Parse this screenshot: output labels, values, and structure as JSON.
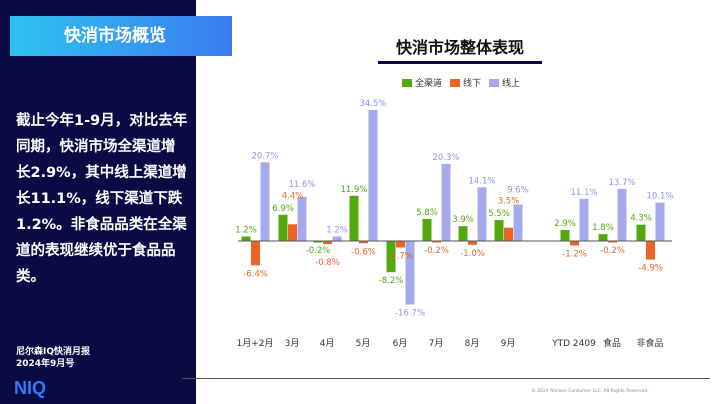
{
  "left_panel": {
    "title": "快消市场概览",
    "summary": "截止今年1-9月，对比去年同期，快消市场全渠道增长2.9%，其中线上渠道增长11.1%，线下渠道下跌1.2%。非食品品类在全渠道的表现继续优于食品品类。",
    "report_line1": "尼尔森IQ快消月报",
    "report_line2": "2024年9月号",
    "logo": "NIQ"
  },
  "footer": {
    "copyright": "© 2024 Nielsen Consumer LLC. All Rights Reserved."
  },
  "colors": {
    "navy": "#0a0a45",
    "all": "#52a80c",
    "offline": "#ec6424",
    "online": "#a5a9ee"
  },
  "chart_data": {
    "type": "bar",
    "title": "快消市场整体表现",
    "categories": [
      "1月+2月",
      "3月",
      "4月",
      "5月",
      "6月",
      "7月",
      "8月",
      "9月",
      "YTD 2409",
      "食品",
      "非食品"
    ],
    "series": [
      {
        "name": "全渠道",
        "values": [
          1.2,
          6.9,
          -0.2,
          11.9,
          -8.2,
          5.8,
          3.9,
          5.5,
          2.9,
          1.8,
          4.3
        ]
      },
      {
        "name": "线下",
        "values": [
          -6.4,
          4.4,
          -0.8,
          -0.6,
          -1.7,
          -0.2,
          -1.0,
          3.5,
          -1.2,
          -0.2,
          -4.9
        ]
      },
      {
        "name": "线上",
        "values": [
          20.7,
          11.6,
          1.2,
          34.5,
          -16.7,
          20.3,
          14.1,
          9.6,
          11.1,
          13.7,
          10.1
        ]
      }
    ],
    "legend": "top",
    "grid": false
  }
}
